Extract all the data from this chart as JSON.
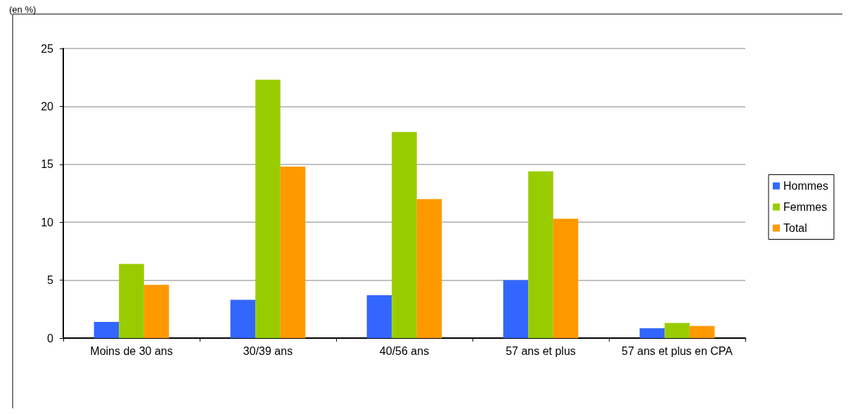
{
  "chart_data": {
    "type": "bar",
    "ylabel": "(en %)",
    "categories": [
      "Moins de 30 ans",
      "30/39 ans",
      "40/56 ans",
      "57 ans et plus",
      "57 ans et plus en CPA"
    ],
    "series": [
      {
        "name": "Hommes",
        "color": "#3366ff",
        "values": [
          1.4,
          3.3,
          3.7,
          5.0,
          0.85
        ]
      },
      {
        "name": "Femmes",
        "color": "#99cc00",
        "values": [
          6.4,
          22.3,
          17.8,
          14.4,
          1.3
        ]
      },
      {
        "name": "Total",
        "color": "#ff9900",
        "values": [
          4.6,
          14.8,
          12.0,
          10.3,
          1.05
        ]
      }
    ],
    "ylim": [
      0,
      25
    ],
    "yticks": [
      0,
      5,
      10,
      15,
      20,
      25
    ],
    "grid": "y",
    "legend": "right"
  }
}
